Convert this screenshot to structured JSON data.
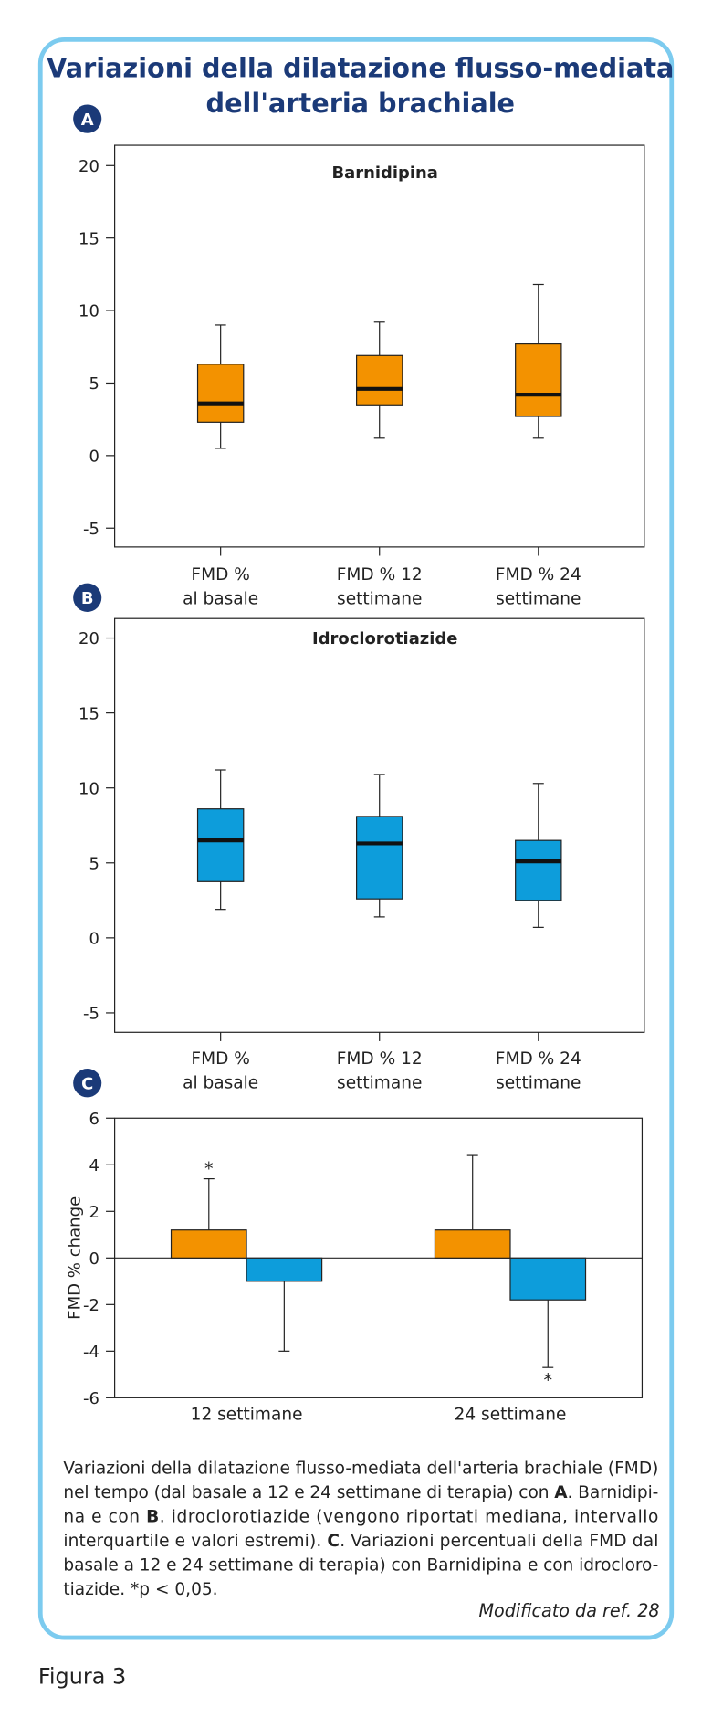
{
  "title": [
    "Variazioni della dilatazione flusso-mediata",
    "dell'arteria brachiale"
  ],
  "chart_data": [
    {
      "type": "boxplot",
      "panel": "A",
      "title": "Barnidipina",
      "color": "#f39200",
      "categories": [
        [
          "FMD %",
          "al basale"
        ],
        [
          "FMD %  12",
          "settimane"
        ],
        [
          "FMD % 24",
          "settimane"
        ]
      ],
      "boxes": [
        {
          "min": 0.5,
          "q1": 2.3,
          "median": 3.6,
          "q3": 6.3,
          "max": 9.0
        },
        {
          "min": 1.2,
          "q1": 3.5,
          "median": 4.6,
          "q3": 6.9,
          "max": 9.2
        },
        {
          "min": 1.2,
          "q1": 2.7,
          "median": 4.2,
          "q3": 7.7,
          "max": 11.8
        }
      ],
      "ylim": [
        -6.3,
        21.4
      ],
      "yticks": [
        -5,
        0,
        5,
        10,
        15,
        20
      ]
    },
    {
      "type": "boxplot",
      "panel": "B",
      "title": "Idroclorotiazide",
      "color": "#0d9ddb",
      "categories": [
        [
          "FMD %",
          "al basale"
        ],
        [
          "FMD %  12",
          "settimane"
        ],
        [
          "FMD % 24",
          "settimane"
        ]
      ],
      "boxes": [
        {
          "min": 1.9,
          "q1": 3.75,
          "median": 6.5,
          "q3": 8.6,
          "max": 11.2
        },
        {
          "min": 1.4,
          "q1": 2.6,
          "median": 6.3,
          "q3": 8.1,
          "max": 10.9
        },
        {
          "min": 0.7,
          "q1": 2.5,
          "median": 5.1,
          "q3": 6.5,
          "max": 10.3
        }
      ],
      "ylim": [
        -6.3,
        21.3
      ],
      "yticks": [
        -5,
        0,
        5,
        10,
        15,
        20
      ]
    },
    {
      "type": "bar",
      "panel": "C",
      "ylabel": "FMD % change",
      "categories": [
        "12 settimane",
        "24 settimane"
      ],
      "series": [
        {
          "color": "#f39200",
          "values": [
            1.2,
            1.2
          ],
          "errors": [
            2.2,
            3.2
          ],
          "markers": [
            "*",
            null
          ]
        },
        {
          "color": "#0d9ddb",
          "values": [
            -1.0,
            -1.8
          ],
          "errors": [
            3.0,
            2.9
          ],
          "markers": [
            null,
            "*"
          ]
        }
      ],
      "ylim": [
        -6,
        6
      ],
      "yticks": [
        -6,
        -4,
        -2,
        0,
        2,
        4,
        6
      ]
    }
  ],
  "caption": [
    [
      "Variazioni della dilatazione flusso-mediata dell'arteria brachiale (FMD)"
    ],
    [
      "nel tempo (dal basale a 12 e 24 settimane di terapia) con ",
      {
        "text": "A",
        "bold": true
      },
      ". Barnidipi-"
    ],
    [
      "na e con ",
      {
        "text": "B",
        "bold": true
      },
      ". idroclorotiazide (vengono riportati mediana, intervallo"
    ],
    [
      "interquartile e valori estremi). ",
      {
        "text": "C",
        "bold": true
      },
      ". Variazioni percentuali della FMD dal"
    ],
    [
      "basale a 12 e 24 settimane di terapia) con Barnidipina e con idrocloro-"
    ],
    [
      "tiazide. *p < 0,05."
    ]
  ],
  "source": "Modificato da ref. 28",
  "figure_label": "Figura 3"
}
